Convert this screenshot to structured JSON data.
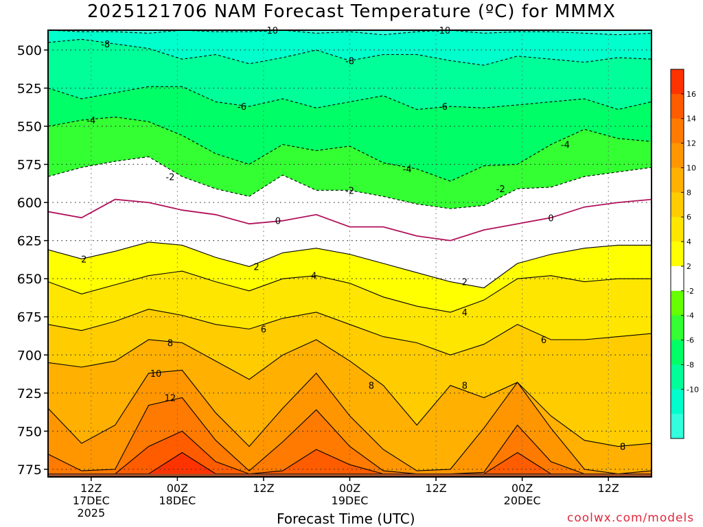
{
  "page": {
    "title": "2025121706 NAM Forecast Temperature (ºC) for MMMX",
    "xlabel": "Forecast Time (UTC)",
    "credit": "coolwx.com/models"
  },
  "chart_data": {
    "type": "contour",
    "title": "2025121706 NAM Forecast Temperature (ºC) for MMMX",
    "xlabel": "Forecast Time (UTC)",
    "ylabel": "",
    "x_range_hours": [
      0,
      84
    ],
    "ylim": [
      487,
      780
    ],
    "y_ticks": [
      500,
      525,
      550,
      575,
      600,
      625,
      650,
      675,
      700,
      725,
      750,
      775
    ],
    "x_ticks": [
      {
        "hour": 6,
        "line1": "12Z",
        "line2": "17DEC",
        "line3": "2025"
      },
      {
        "hour": 18,
        "line1": "00Z",
        "line2": "18DEC",
        "line3": ""
      },
      {
        "hour": 30,
        "line1": "12Z",
        "line2": "",
        "line3": ""
      },
      {
        "hour": 42,
        "line1": "00Z",
        "line2": "19DEC",
        "line3": ""
      },
      {
        "hour": 54,
        "line1": "12Z",
        "line2": "",
        "line3": ""
      },
      {
        "hour": 66,
        "line1": "00Z",
        "line2": "20DEC",
        "line3": ""
      },
      {
        "hour": 78,
        "line1": "12Z",
        "line2": "",
        "line3": ""
      }
    ],
    "colorbar": {
      "labels": [
        "16",
        "14",
        "12",
        "10",
        "8",
        "6",
        "4",
        "2",
        "-2",
        "-4",
        "-6",
        "-8",
        "-10"
      ],
      "bands": [
        {
          "color": "#ff3300"
        },
        {
          "color": "#ff5c00"
        },
        {
          "color": "#ff7a00"
        },
        {
          "color": "#ff9600"
        },
        {
          "color": "#ffb000"
        },
        {
          "color": "#ffcc00"
        },
        {
          "color": "#ffe600"
        },
        {
          "color": "#ffff00"
        },
        {
          "color": "#ffffff"
        },
        {
          "color": "#66ff00"
        },
        {
          "color": "#33ff33"
        },
        {
          "color": "#00ff66"
        },
        {
          "color": "#00ff99"
        },
        {
          "color": "#00ffcc"
        },
        {
          "color": "#33ffdd"
        }
      ]
    },
    "isotherms": [
      {
        "level": -10,
        "pressure": [
          487,
          488,
          488,
          489,
          487,
          488,
          488,
          487,
          489,
          488,
          490,
          488,
          487,
          489,
          488,
          488,
          489,
          490,
          489
        ],
        "labels": [
          {
            "text": "-10",
            "hour": 31
          },
          {
            "text": "-10",
            "hour": 55
          }
        ]
      },
      {
        "level": -8,
        "pressure": [
          495,
          493,
          496,
          499,
          506,
          503,
          509,
          505,
          500,
          507,
          503,
          503,
          507,
          510,
          504,
          506,
          508,
          505,
          506
        ],
        "labels": [
          {
            "text": "-8",
            "hour": 8
          },
          {
            "text": "-8",
            "hour": 42
          }
        ]
      },
      {
        "level": -6,
        "pressure": [
          525,
          532,
          528,
          524,
          524,
          534,
          537,
          532,
          538,
          534,
          530,
          539,
          537,
          538,
          536,
          534,
          532,
          539,
          534
        ],
        "labels": [
          {
            "text": "-6",
            "hour": 27
          },
          {
            "text": "-6",
            "hour": 55
          }
        ]
      },
      {
        "level": -4,
        "pressure": [
          550,
          546,
          544,
          547,
          556,
          568,
          575,
          562,
          566,
          563,
          574,
          578,
          586,
          576,
          575,
          562,
          552,
          558,
          560
        ],
        "labels": [
          {
            "text": "-4",
            "hour": 6
          },
          {
            "text": "-4",
            "hour": 50
          },
          {
            "text": "-4",
            "hour": 72
          }
        ]
      },
      {
        "level": -2,
        "pressure": [
          583,
          577,
          573,
          570,
          583,
          591,
          596,
          582,
          592,
          592,
          596,
          601,
          604,
          602,
          591,
          590,
          583,
          580,
          577
        ],
        "labels": [
          {
            "text": "-2",
            "hour": 17
          },
          {
            "text": "-2",
            "hour": 42
          },
          {
            "text": "-2",
            "hour": 63
          }
        ]
      },
      {
        "level": 0,
        "pressure": [
          606,
          610,
          598,
          600,
          605,
          608,
          614,
          612,
          608,
          616,
          616,
          622,
          625,
          618,
          614,
          610,
          603,
          600,
          598
        ],
        "labels": [
          {
            "text": "0",
            "hour": 32
          },
          {
            "text": "0",
            "hour": 70
          }
        ]
      },
      {
        "level": 2,
        "pressure": [
          631,
          637,
          632,
          626,
          628,
          636,
          642,
          633,
          630,
          634,
          640,
          646,
          652,
          656,
          640,
          634,
          630,
          628,
          628
        ],
        "labels": [
          {
            "text": "2",
            "hour": 5
          },
          {
            "text": "2",
            "hour": 29
          },
          {
            "text": "2",
            "hour": 58
          }
        ]
      },
      {
        "level": 4,
        "pressure": [
          652,
          660,
          654,
          648,
          645,
          652,
          658,
          650,
          648,
          653,
          662,
          668,
          672,
          664,
          650,
          648,
          652,
          650,
          650
        ],
        "labels": [
          {
            "text": "4",
            "hour": 37
          },
          {
            "text": "4",
            "hour": 58
          }
        ]
      },
      {
        "level": 6,
        "pressure": [
          680,
          684,
          678,
          670,
          674,
          680,
          683,
          676,
          672,
          680,
          688,
          692,
          700,
          693,
          680,
          690,
          690,
          688,
          686
        ],
        "labels": [
          {
            "text": "6",
            "hour": 30
          },
          {
            "text": "6",
            "hour": 69
          }
        ]
      },
      {
        "level": 8,
        "pressure": [
          705,
          708,
          704,
          690,
          692,
          704,
          716,
          700,
          690,
          704,
          720,
          746,
          720,
          728,
          718,
          740,
          756,
          760,
          758
        ],
        "labels": [
          {
            "text": "8",
            "hour": 17
          },
          {
            "text": "8",
            "hour": 45
          },
          {
            "text": "8",
            "hour": 58
          },
          {
            "text": "8",
            "hour": 80
          }
        ]
      },
      {
        "level": 10,
        "pressure": [
          735,
          758,
          746,
          712,
          710,
          738,
          760,
          735,
          712,
          740,
          762,
          776,
          775,
          748,
          718,
          748,
          775,
          778,
          776
        ],
        "labels": [
          {
            "text": "10",
            "hour": 15
          }
        ]
      },
      {
        "level": 12,
        "pressure": [
          765,
          776,
          775,
          733,
          728,
          756,
          776,
          757,
          736,
          760,
          776,
          778,
          778,
          777,
          746,
          770,
          778,
          778,
          778
        ],
        "labels": [
          {
            "text": "12",
            "hour": 17
          }
        ]
      },
      {
        "level": 14,
        "pressure": [
          778,
          778,
          778,
          760,
          750,
          770,
          778,
          776,
          762,
          772,
          778,
          778,
          778,
          778,
          764,
          778,
          778,
          778,
          778
        ],
        "labels": []
      },
      {
        "level": 16,
        "pressure": [
          778,
          778,
          778,
          778,
          764,
          778,
          778,
          778,
          778,
          778,
          778,
          778,
          778,
          778,
          778,
          778,
          778,
          778,
          778
        ],
        "labels": []
      }
    ],
    "surface_pressure": 778
  }
}
